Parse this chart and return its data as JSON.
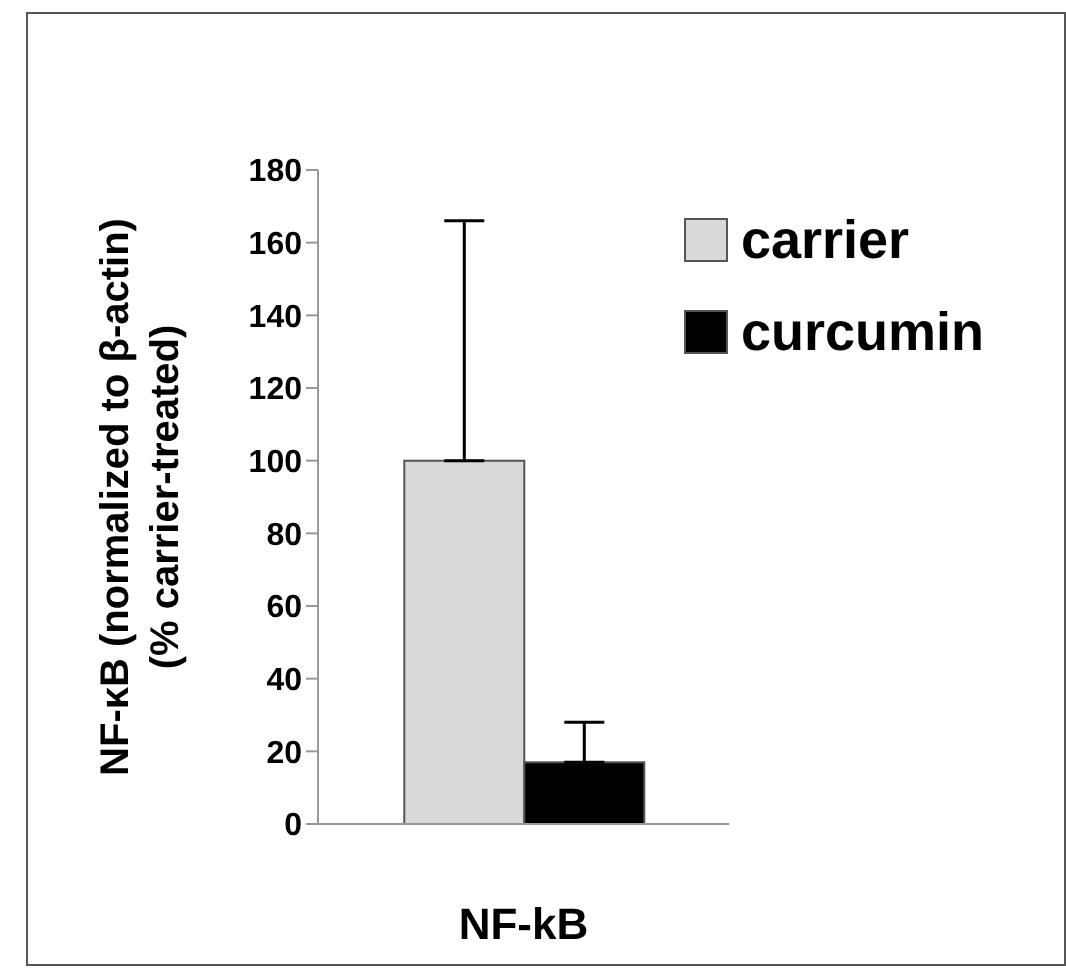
{
  "chart_data": {
    "type": "bar",
    "categories": [
      "NF-kB"
    ],
    "ylabel": "NF-κB (normalized to β-actin)\n(% carrier-treated)",
    "series": [
      {
        "name": "carrier",
        "color": "#d9d9d9",
        "values": [
          100
        ],
        "errors": [
          [
            100,
            166
          ]
        ]
      },
      {
        "name": "curcumin",
        "color": "#000000",
        "values": [
          17
        ],
        "errors": [
          [
            17,
            28
          ]
        ]
      }
    ],
    "ylim": [
      0,
      180
    ],
    "yticks": [
      0,
      20,
      40,
      60,
      80,
      100,
      120,
      140,
      160,
      180
    ],
    "grid": false,
    "legend": "top right"
  }
}
